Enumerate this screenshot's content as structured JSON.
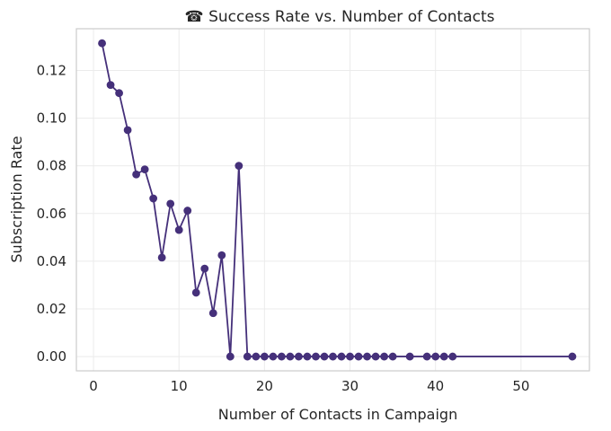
{
  "chart_data": {
    "type": "line",
    "title": "☎ Success Rate vs. Number of Contacts",
    "xlabel": "Number of Contacts in Campaign",
    "ylabel": "Subscription Rate",
    "xlim": [
      -2,
      58
    ],
    "ylim": [
      -0.006,
      0.1375
    ],
    "xticks": [
      0,
      10,
      20,
      30,
      40,
      50
    ],
    "xtick_labels": [
      "0",
      "10",
      "20",
      "30",
      "40",
      "50"
    ],
    "yticks": [
      0.0,
      0.02,
      0.04,
      0.06,
      0.08,
      0.1,
      0.12
    ],
    "ytick_labels": [
      "0.00",
      "0.02",
      "0.04",
      "0.06",
      "0.08",
      "0.10",
      "0.12"
    ],
    "grid": true,
    "legend": "none",
    "series": [
      {
        "color": "#45307a",
        "marker": "circle",
        "x": [
          1,
          2,
          3,
          4,
          5,
          6,
          7,
          8,
          9,
          10,
          11,
          12,
          13,
          14,
          15,
          16,
          17,
          18,
          19,
          20,
          21,
          22,
          23,
          24,
          25,
          26,
          27,
          28,
          29,
          30,
          31,
          32,
          33,
          34,
          35,
          37,
          39,
          40,
          41,
          42,
          56
        ],
        "y": [
          0.1314,
          0.1139,
          0.1105,
          0.095,
          0.0764,
          0.0785,
          0.0663,
          0.0415,
          0.0641,
          0.0531,
          0.0612,
          0.0268,
          0.0369,
          0.0182,
          0.0425,
          0.0,
          0.08,
          0.0,
          0.0,
          0.0,
          0.0,
          0.0,
          0.0,
          0.0,
          0.0,
          0.0,
          0.0,
          0.0,
          0.0,
          0.0,
          0.0,
          0.0,
          0.0,
          0.0,
          0.0,
          0.0,
          0.0,
          0.0,
          0.0,
          0.0,
          0.0
        ]
      }
    ]
  }
}
